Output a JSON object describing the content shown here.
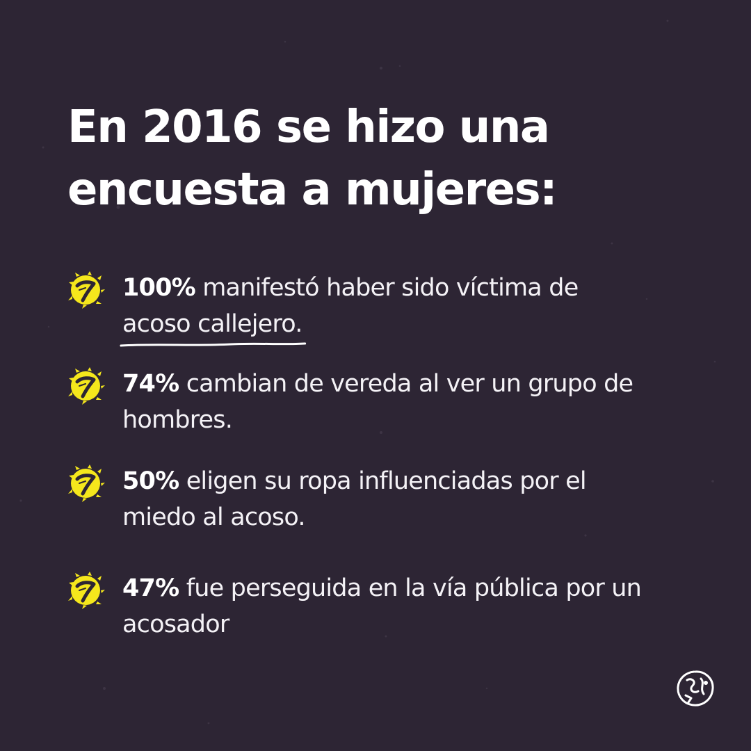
{
  "title": {
    "line1": "En 2016 se hizo una",
    "line2": "encuesta a mujeres:"
  },
  "items": [
    {
      "stat": "100%",
      "text": "manifestó haber sido víctima de",
      "underlined": "acoso callejero."
    },
    {
      "stat": "74%",
      "text": "cambian de vereda al ver un grupo de hombres."
    },
    {
      "stat": "50%",
      "text": "eligen su ropa influenciadas por el miedo al acoso."
    },
    {
      "stat": "47%",
      "text": "fue perseguida en la vía pública por un acosador"
    }
  ],
  "icons": {
    "bullet": "yellow-scribble-slash-icon",
    "logo": "hand-drawn-circle-logo"
  },
  "colors": {
    "background": "#2d2534",
    "text": "#ffffff",
    "accent": "#f5e71c"
  }
}
